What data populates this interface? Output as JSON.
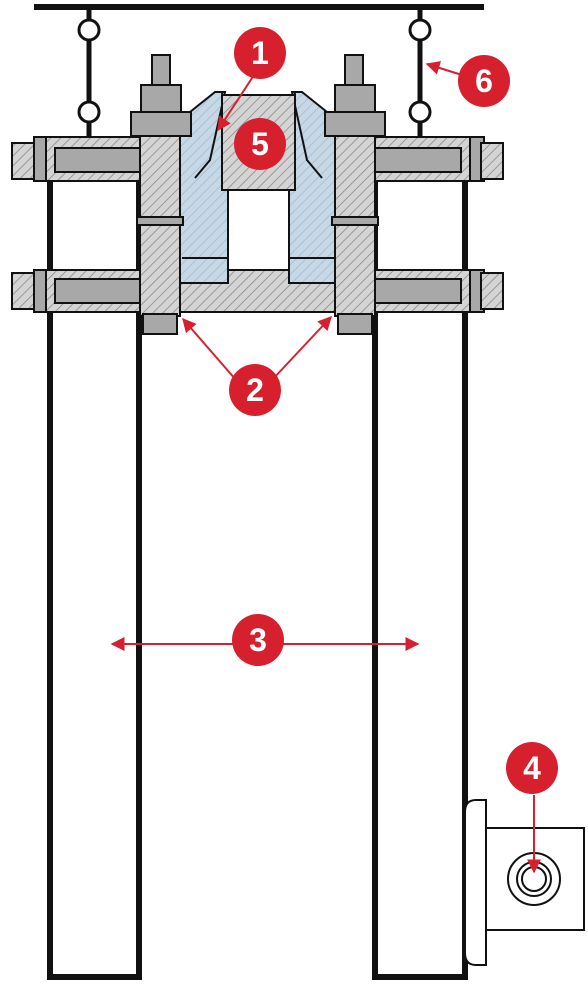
{
  "colors": {
    "stroke": "#111111",
    "hatch_fill": "#c9c9c9",
    "bolt_fill": "#a8a8a8",
    "wedge_fill": "#c8d8e6",
    "callout_red": "#d6202e",
    "callout_text": "#ffffff"
  },
  "callouts": [
    {
      "id": "callout-1",
      "label": "1"
    },
    {
      "id": "callout-2",
      "label": "2"
    },
    {
      "id": "callout-3",
      "label": "3"
    },
    {
      "id": "callout-4",
      "label": "4"
    },
    {
      "id": "callout-5",
      "label": "5"
    },
    {
      "id": "callout-6",
      "label": "6"
    }
  ]
}
